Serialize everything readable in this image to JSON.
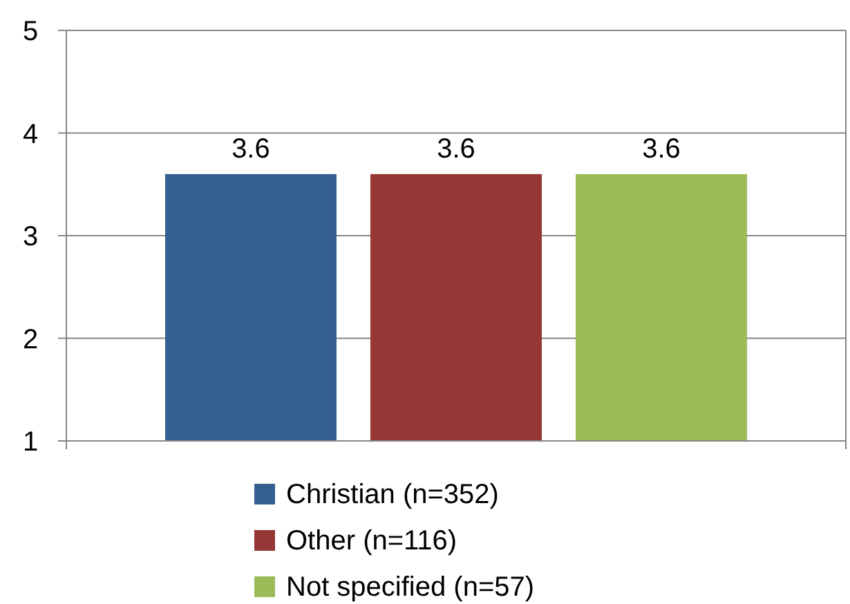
{
  "chart_data": {
    "type": "bar",
    "categories": [
      null
    ],
    "series": [
      {
        "name": "Christian (n=352)",
        "color": "#365f91",
        "values": [
          3.6
        ]
      },
      {
        "name": "Other (n=116)",
        "color": "#953735",
        "values": [
          3.6
        ]
      },
      {
        "name": "Not specified (n=57)",
        "color": "#9bbb59",
        "values": [
          3.6
        ]
      }
    ],
    "ylim": [
      1,
      5
    ],
    "yticks": [
      1,
      2,
      3,
      4,
      5
    ],
    "grid": "y",
    "legend": "bottom",
    "data_labels": true
  }
}
